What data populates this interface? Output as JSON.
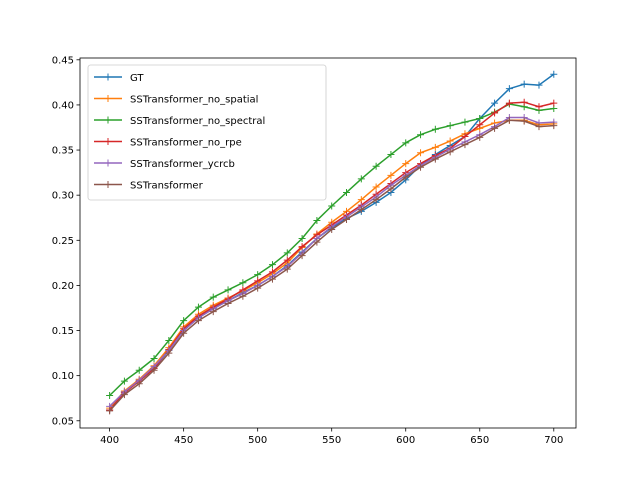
{
  "chart_data": {
    "type": "line",
    "title": "",
    "xlabel": "",
    "ylabel": "",
    "xlim": [
      380,
      715
    ],
    "ylim": [
      0.042,
      0.452
    ],
    "xticks": [
      400,
      450,
      500,
      550,
      600,
      650,
      700
    ],
    "yticks": [
      0.05,
      0.1,
      0.15,
      0.2,
      0.25,
      0.3,
      0.35,
      0.4,
      0.45
    ],
    "x": [
      400,
      410,
      420,
      430,
      440,
      450,
      460,
      470,
      480,
      490,
      500,
      510,
      520,
      530,
      540,
      550,
      560,
      570,
      580,
      590,
      600,
      610,
      620,
      630,
      640,
      650,
      660,
      670,
      680,
      690,
      700
    ],
    "marker": "+",
    "grid": false,
    "legend_position": "upper-left",
    "series": [
      {
        "name": "GT",
        "color": "#1f77b4",
        "values": [
          0.062,
          0.082,
          0.094,
          0.108,
          0.128,
          0.15,
          0.165,
          0.175,
          0.183,
          0.192,
          0.2,
          0.21,
          0.222,
          0.237,
          0.252,
          0.264,
          0.274,
          0.282,
          0.292,
          0.303,
          0.317,
          0.333,
          0.345,
          0.355,
          0.365,
          0.385,
          0.402,
          0.418,
          0.423,
          0.422,
          0.434
        ]
      },
      {
        "name": "SSTransformer_no_spatial",
        "color": "#ff7f0e",
        "values": [
          0.064,
          0.083,
          0.096,
          0.111,
          0.131,
          0.154,
          0.168,
          0.178,
          0.186,
          0.194,
          0.203,
          0.213,
          0.225,
          0.242,
          0.257,
          0.27,
          0.282,
          0.295,
          0.309,
          0.322,
          0.335,
          0.347,
          0.353,
          0.36,
          0.368,
          0.374,
          0.38,
          0.383,
          0.383,
          0.378,
          0.379
        ]
      },
      {
        "name": "SSTransformer_no_spectral",
        "color": "#2ca02c",
        "values": [
          0.078,
          0.094,
          0.106,
          0.119,
          0.139,
          0.161,
          0.176,
          0.187,
          0.195,
          0.203,
          0.212,
          0.223,
          0.236,
          0.252,
          0.272,
          0.288,
          0.303,
          0.318,
          0.332,
          0.345,
          0.358,
          0.367,
          0.373,
          0.377,
          0.381,
          0.385,
          0.392,
          0.401,
          0.398,
          0.394,
          0.396
        ]
      },
      {
        "name": "SSTransformer_no_rpe",
        "color": "#d62728",
        "values": [
          0.062,
          0.081,
          0.094,
          0.108,
          0.129,
          0.152,
          0.166,
          0.176,
          0.185,
          0.195,
          0.205,
          0.215,
          0.228,
          0.243,
          0.256,
          0.267,
          0.278,
          0.289,
          0.301,
          0.313,
          0.325,
          0.335,
          0.344,
          0.352,
          0.365,
          0.378,
          0.391,
          0.402,
          0.403,
          0.398,
          0.402
        ]
      },
      {
        "name": "SSTransformer_ycrcb",
        "color": "#9467bd",
        "values": [
          0.066,
          0.082,
          0.095,
          0.11,
          0.128,
          0.15,
          0.164,
          0.174,
          0.183,
          0.191,
          0.2,
          0.21,
          0.221,
          0.236,
          0.252,
          0.265,
          0.276,
          0.287,
          0.298,
          0.311,
          0.322,
          0.333,
          0.342,
          0.351,
          0.359,
          0.367,
          0.376,
          0.386,
          0.386,
          0.38,
          0.381
        ]
      },
      {
        "name": "SSTransformer",
        "color": "#8c564b",
        "values": [
          0.061,
          0.079,
          0.091,
          0.106,
          0.125,
          0.147,
          0.161,
          0.171,
          0.18,
          0.188,
          0.197,
          0.207,
          0.218,
          0.233,
          0.248,
          0.262,
          0.273,
          0.284,
          0.295,
          0.307,
          0.32,
          0.331,
          0.34,
          0.348,
          0.356,
          0.364,
          0.374,
          0.383,
          0.382,
          0.376,
          0.377
        ]
      }
    ]
  }
}
